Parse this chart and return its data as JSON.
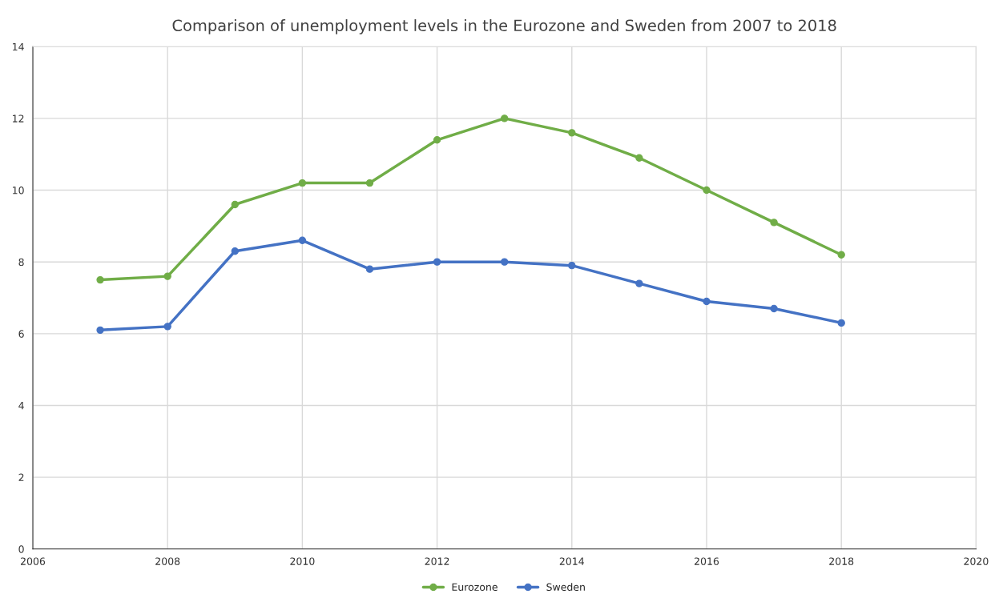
{
  "chart_data": {
    "type": "line",
    "title": "Comparison of unemployment levels in the Eurozone and Sweden from 2007 to 2018",
    "x": [
      2007,
      2008,
      2009,
      2010,
      2011,
      2012,
      2013,
      2014,
      2015,
      2016,
      2017,
      2018
    ],
    "series": [
      {
        "name": "Eurozone",
        "color": "#70ad47",
        "values": [
          7.5,
          7.6,
          9.6,
          10.2,
          10.2,
          11.4,
          12.0,
          11.6,
          10.9,
          10.0,
          9.1,
          8.2
        ]
      },
      {
        "name": "Sweden",
        "color": "#4472c4",
        "values": [
          6.1,
          6.2,
          8.3,
          8.6,
          7.8,
          8.0,
          8.0,
          7.9,
          7.4,
          6.9,
          6.7,
          6.3
        ]
      }
    ],
    "xlim": [
      2006,
      2020
    ],
    "xticks": [
      2006,
      2008,
      2010,
      2012,
      2014,
      2016,
      2018,
      2020
    ],
    "ylim": [
      0,
      14
    ],
    "yticks": [
      0,
      2,
      4,
      6,
      8,
      10,
      12,
      14
    ],
    "grid": true,
    "legend": "bottom",
    "marker": "circle",
    "line_style": "solid"
  }
}
